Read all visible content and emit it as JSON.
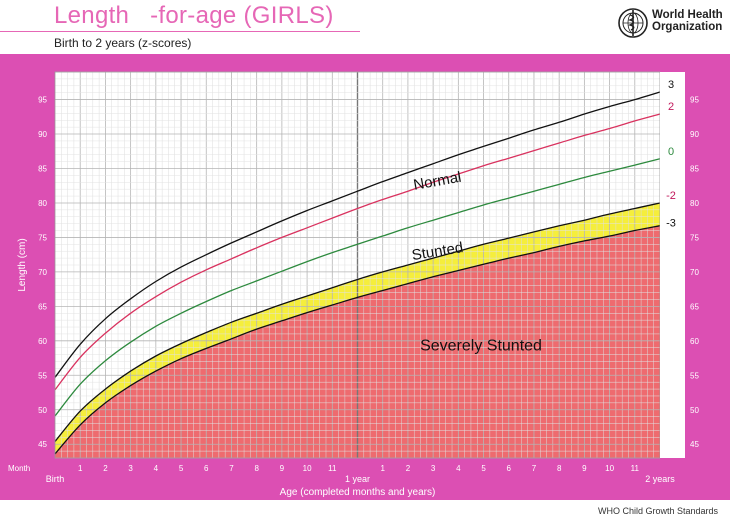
{
  "header": {
    "title": "Length   -for-age (GIRLS)",
    "subtitle": "Birth to 2 years (z-scores)",
    "org_line1": "World Health",
    "org_line2": "Organization",
    "logo_icon": "who-emblem-icon"
  },
  "footer": {
    "source": "WHO Child Growth Standards"
  },
  "colors": {
    "frame": "#dc4fb3",
    "severely_fill": "#ee6b6f",
    "stunted_fill": "#f5ee3c",
    "plot_bg": "#ffffff",
    "z3": "#111111",
    "z2": "#d9325f",
    "z0": "#2d8a3e",
    "zm2": "#111111",
    "zm3": "#111111",
    "label_z2": "#c2185b",
    "label_z0": "#2d8a3e"
  },
  "chart_data": {
    "type": "line",
    "x_unit": "months",
    "xlim": [
      0,
      24
    ],
    "ylim": [
      43,
      99
    ],
    "ylabel": "Length (cm)",
    "xlabel": "Age (completed months and years)",
    "x_axis_corner_label": "Month",
    "x_major_labels": [
      {
        "x": 0,
        "label": "Birth"
      },
      {
        "x": 12,
        "label": "1 year"
      },
      {
        "x": 24,
        "label": "2 years"
      }
    ],
    "x_minor_ticks": [
      1,
      2,
      3,
      4,
      5,
      6,
      7,
      8,
      9,
      10,
      11,
      13,
      14,
      15,
      16,
      17,
      18,
      19,
      20,
      21,
      22,
      23
    ],
    "x_minor_labels": [
      "1",
      "2",
      "3",
      "4",
      "5",
      "6",
      "7",
      "8",
      "9",
      "10",
      "11",
      "1",
      "2",
      "3",
      "4",
      "5",
      "6",
      "7",
      "8",
      "9",
      "10",
      "11"
    ],
    "y_ticks": [
      45,
      50,
      55,
      60,
      65,
      70,
      75,
      80,
      85,
      90,
      95
    ],
    "grid": true,
    "x": [
      0,
      1,
      2,
      3,
      4,
      5,
      6,
      7,
      8,
      9,
      10,
      11,
      12,
      13,
      14,
      15,
      16,
      17,
      18,
      19,
      20,
      21,
      22,
      23,
      24
    ],
    "series": [
      {
        "name": "3",
        "color_key": "z3",
        "values": [
          54.7,
          59.5,
          63.2,
          66.1,
          68.6,
          70.7,
          72.5,
          74.2,
          75.8,
          77.4,
          78.9,
          80.3,
          81.7,
          83.1,
          84.4,
          85.7,
          87.0,
          88.2,
          89.4,
          90.6,
          91.7,
          92.9,
          94.0,
          95.0,
          96.1
        ]
      },
      {
        "name": "2",
        "color_key": "z2",
        "values": [
          52.9,
          57.6,
          61.1,
          64.0,
          66.4,
          68.5,
          70.3,
          71.9,
          73.5,
          75.0,
          76.4,
          77.8,
          79.2,
          80.5,
          81.7,
          83.0,
          84.2,
          85.4,
          86.5,
          87.6,
          88.7,
          89.8,
          90.8,
          91.9,
          92.9
        ]
      },
      {
        "name": "0",
        "color_key": "z0",
        "values": [
          49.1,
          53.7,
          57.1,
          59.8,
          62.1,
          64.0,
          65.7,
          67.3,
          68.7,
          70.1,
          71.5,
          72.8,
          74.0,
          75.2,
          76.4,
          77.5,
          78.6,
          79.7,
          80.7,
          81.7,
          82.7,
          83.7,
          84.6,
          85.5,
          86.4
        ]
      },
      {
        "name": "-2",
        "color_key": "zm2",
        "values": [
          45.4,
          49.8,
          53.0,
          55.6,
          57.8,
          59.6,
          61.2,
          62.7,
          64.0,
          65.3,
          66.5,
          67.7,
          68.9,
          70.0,
          71.0,
          72.0,
          73.0,
          74.0,
          74.9,
          75.8,
          76.7,
          77.5,
          78.4,
          79.2,
          80.0
        ]
      },
      {
        "name": "-3",
        "color_key": "zm3",
        "values": [
          43.6,
          47.8,
          51.0,
          53.5,
          55.6,
          57.4,
          58.9,
          60.3,
          61.7,
          62.9,
          64.1,
          65.2,
          66.3,
          67.3,
          68.3,
          69.3,
          70.2,
          71.1,
          72.0,
          72.8,
          73.7,
          74.5,
          75.2,
          76.0,
          76.7
        ]
      }
    ],
    "annotations": [
      {
        "text": "Normal",
        "x": 15.2,
        "y": 82.5
      },
      {
        "text": "Stunted",
        "x": 15.2,
        "y": 72.3
      },
      {
        "text": "Severely Stunted",
        "x": 16.9,
        "y": 58.6
      }
    ],
    "legend": "line-end labels right"
  }
}
